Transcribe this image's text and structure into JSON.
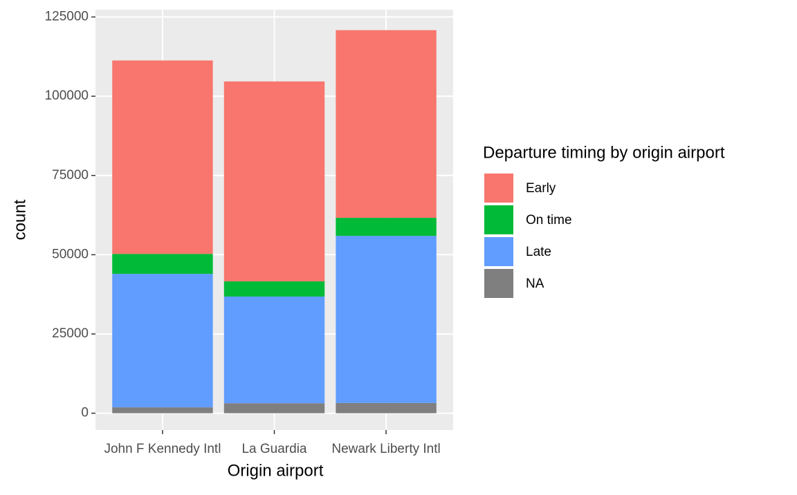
{
  "chart_data": {
    "type": "stacked_bar",
    "x_label": "Origin airport",
    "y_label": "count",
    "legend_title": "Departure timing by origin airport",
    "categories": [
      "John F Kennedy Intl",
      "La Guardia",
      "Newark Liberty Intl"
    ],
    "series": [
      {
        "name": "Early",
        "color": "#f8766d",
        "values": [
          61016,
          63059,
          59196
        ]
      },
      {
        "name": "On time",
        "color": "#00ba38",
        "values": [
          6300,
          4800,
          5700
        ]
      },
      {
        "name": "Late",
        "color": "#619cff",
        "values": [
          42100,
          33650,
          52700
        ]
      },
      {
        "name": "NA",
        "color": "#7f7f7f",
        "values": [
          1863,
          3153,
          3239
        ]
      }
    ],
    "ylim": [
      -5300,
      127300
    ],
    "yticks": [
      0,
      25000,
      50000,
      75000,
      100000,
      125000
    ],
    "grid": true,
    "legend": "right"
  }
}
